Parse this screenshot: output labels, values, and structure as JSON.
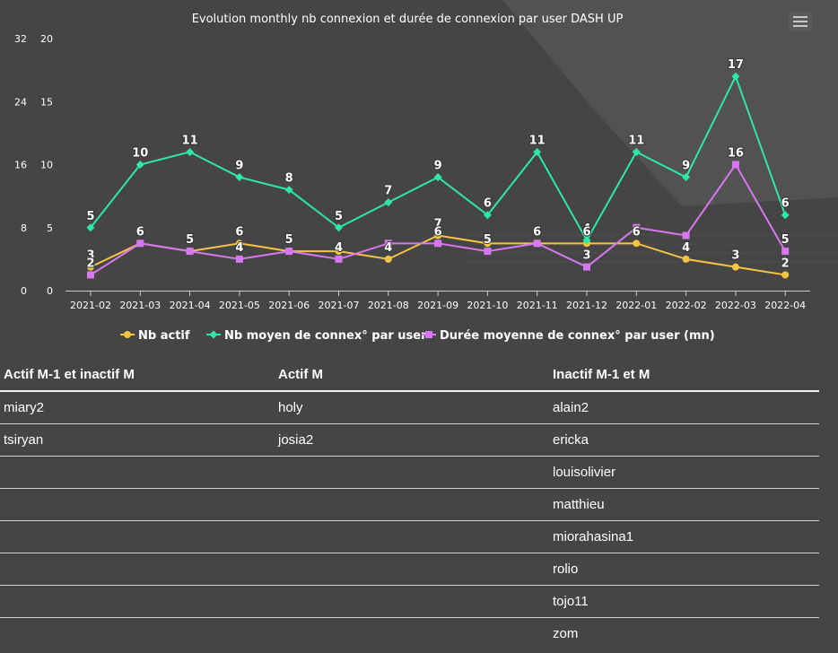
{
  "chart_data": {
    "type": "line",
    "title": "Evolution monthly nb connexion et durée de connexion par user DASH UP",
    "categories": [
      "2021-02",
      "2021-03",
      "2021-04",
      "2021-05",
      "2021-06",
      "2021-07",
      "2021-08",
      "2021-09",
      "2021-10",
      "2021-11",
      "2021-12",
      "2022-01",
      "2022-02",
      "2022-03",
      "2022-04"
    ],
    "left_axis": {
      "ticks": [
        "0",
        "8",
        "16",
        "24",
        "32"
      ],
      "range": [
        0,
        32
      ]
    },
    "right_axis": {
      "ticks": [
        "0",
        "5",
        "10",
        "15",
        "20"
      ],
      "range": [
        0,
        20
      ]
    },
    "series": [
      {
        "name": "Nb actif",
        "axis": "left",
        "color": "#f5c542",
        "marker": "circle",
        "values": [
          3,
          6,
          5,
          6,
          5,
          5,
          4,
          7,
          6,
          6,
          6,
          6,
          4,
          3,
          2
        ]
      },
      {
        "name": "Nb moyen de connex° par user",
        "axis": "right",
        "color": "#2ee8a5",
        "marker": "diamond",
        "values": [
          5,
          10,
          11,
          9,
          8,
          5,
          7,
          9,
          6,
          11,
          4,
          11,
          9,
          17,
          6
        ]
      },
      {
        "name": "Durée moyenne de connex° par user (mn)",
        "axis": "left",
        "color": "#d878f0",
        "marker": "square",
        "values": [
          2,
          6,
          5,
          4,
          5,
          4,
          6,
          6,
          5,
          6,
          3,
          8,
          7,
          16,
          5
        ]
      }
    ],
    "labels": [
      {
        "series": 1,
        "text": [
          "5",
          "10",
          "11",
          "9",
          "8",
          "5",
          "7",
          "9",
          "6",
          "11",
          "4",
          "11",
          "9",
          "17",
          "6"
        ]
      },
      {
        "series": 0,
        "text": [
          "3",
          "6",
          "",
          "6",
          "5",
          "",
          "4",
          "7",
          "",
          "6",
          "6",
          "6",
          "4",
          "3",
          "2"
        ]
      },
      {
        "series": 2,
        "text": [
          "2",
          "6",
          "5",
          "4",
          "5",
          "4",
          "",
          "6",
          "5",
          "6",
          "3",
          "",
          "",
          "16",
          "5"
        ]
      }
    ],
    "legend_position": "bottom"
  },
  "table": {
    "headers": [
      "Actif M-1 et inactif M",
      "Actif M",
      "Inactif M-1 et M"
    ],
    "rows": [
      [
        "miary2",
        "holy",
        "alain2"
      ],
      [
        "tsiryan",
        "josia2",
        "ericka"
      ],
      [
        "",
        "",
        "louisolivier"
      ],
      [
        "",
        "",
        "matthieu"
      ],
      [
        "",
        "",
        "miorahasina1"
      ],
      [
        "",
        "",
        "rolio"
      ],
      [
        "",
        "",
        "tojo11"
      ],
      [
        "",
        "",
        "zom"
      ]
    ]
  }
}
